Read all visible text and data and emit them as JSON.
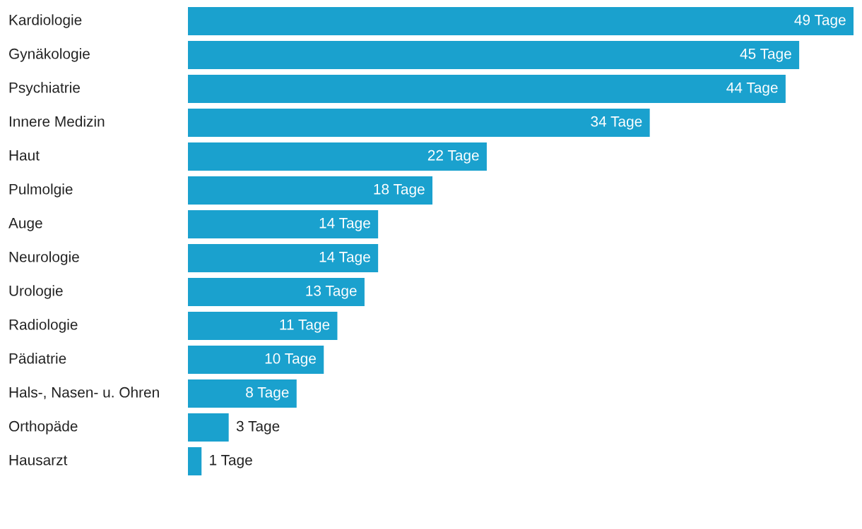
{
  "chart_data": {
    "type": "bar",
    "orientation": "horizontal",
    "color": "#1aa1ce",
    "categories": [
      "Kardiologie",
      "Gynäkologie",
      "Psychiatrie",
      "Innere Medizin",
      "Haut",
      "Pulmolgie",
      "Auge",
      "Neurologie",
      "Urologie",
      "Radiologie",
      "Pädiatrie",
      "Hals-, Nasen- u. Ohren",
      "Orthopäde",
      "Hausarzt"
    ],
    "values": [
      49,
      45,
      44,
      34,
      22,
      18,
      14,
      14,
      13,
      11,
      10,
      8,
      3,
      1
    ],
    "value_labels": [
      "49 Tage",
      "45 Tage",
      "44 Tage",
      "34 Tage",
      "22 Tage",
      "18 Tage",
      "14 Tage",
      "14 Tage",
      "13 Tage",
      "11 Tage",
      "10 Tage",
      "8 Tage",
      "3 Tage",
      "1 Tage"
    ]
  }
}
